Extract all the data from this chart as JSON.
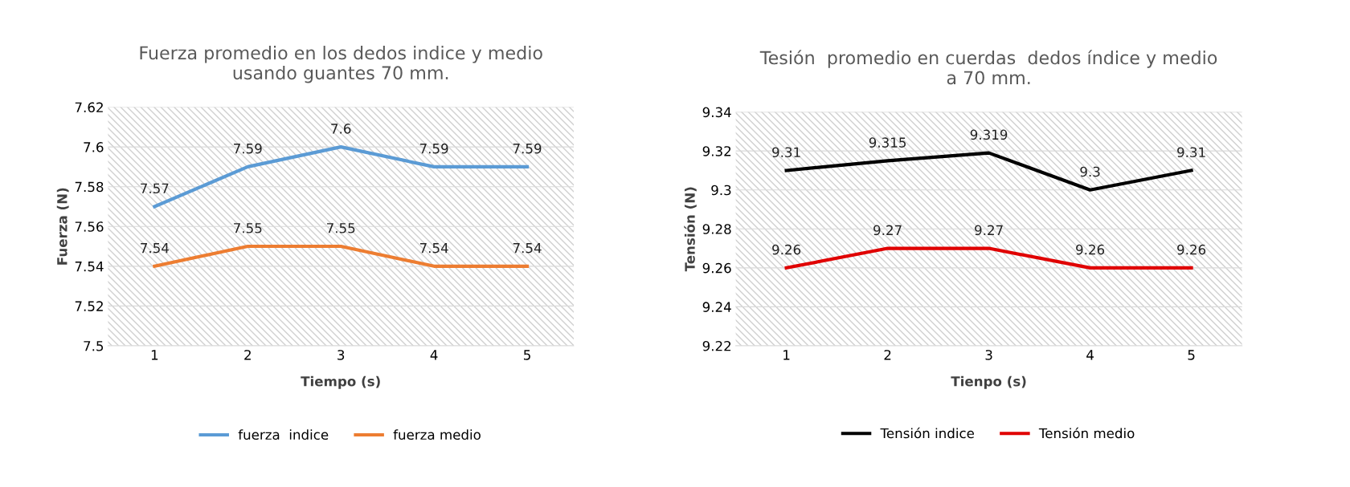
{
  "chart_data": [
    {
      "type": "line",
      "title": "Fuerza promedio en los dedos indice y medio\nusando guantes 70 mm.",
      "xlabel": "Tiempo (s)",
      "ylabel": "Fuerza (N)",
      "categories": [
        "1",
        "2",
        "3",
        "4",
        "5"
      ],
      "series": [
        {
          "name": "fuerza  indice",
          "color": "#5b9bd5",
          "values": [
            7.57,
            7.59,
            7.6,
            7.59,
            7.59
          ]
        },
        {
          "name": "fuerza medio",
          "color": "#ed7d31",
          "values": [
            7.54,
            7.55,
            7.55,
            7.54,
            7.54
          ]
        }
      ],
      "ylim": [
        7.5,
        7.62
      ],
      "yticks": [
        7.5,
        7.52,
        7.54,
        7.56,
        7.58,
        7.6,
        7.62
      ],
      "grid": "y",
      "legend": "bottom",
      "data_labels": true,
      "marker": "none",
      "line_style": "solid"
    },
    {
      "type": "line",
      "title": "Tesión  promedio en cuerdas  dedos índice y medio\na 70 mm.",
      "xlabel": "Tienpo (s)",
      "ylabel": "Tensión (N)",
      "categories": [
        "1",
        "2",
        "3",
        "4",
        "5"
      ],
      "series": [
        {
          "name": "Tensión indice",
          "color": "#000000",
          "values": [
            9.31,
            9.315,
            9.319,
            9.3,
            9.31
          ]
        },
        {
          "name": "Tensión medio",
          "color": "#e00000",
          "values": [
            9.26,
            9.27,
            9.27,
            9.26,
            9.26
          ]
        }
      ],
      "ylim": [
        9.22,
        9.34
      ],
      "yticks": [
        9.22,
        9.24,
        9.26,
        9.28,
        9.3,
        9.32,
        9.34
      ],
      "grid": "y",
      "legend": "bottom",
      "data_labels": true,
      "marker": "none",
      "line_style": "solid"
    }
  ]
}
